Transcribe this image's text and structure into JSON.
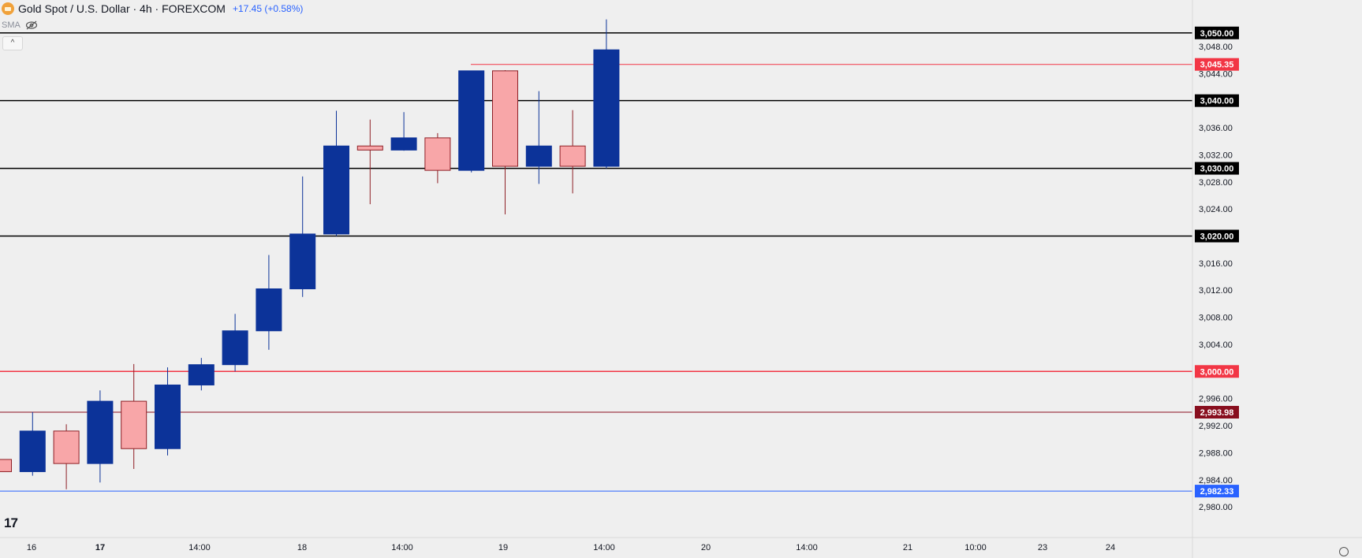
{
  "header": {
    "title": "Gold Spot / U.S. Dollar · 4h · FOREXCOM",
    "change": "+17.45 (+0.58%)",
    "indicator": "SMA",
    "collapse_label": "^",
    "logo": "17"
  },
  "colors": {
    "bull": "#0c3399",
    "bear": "#f8a6a8",
    "bear_border": "#8e1f25",
    "background": "#efefef",
    "red_line": "#f23645",
    "dark_red": "#880e1e",
    "blue_line": "#2962ff",
    "black_line": "#000000"
  },
  "chart_data": {
    "type": "candlestick",
    "interval": "4h",
    "y_axis": {
      "ticks": [
        2980,
        2984,
        2988,
        2992,
        2996,
        3000,
        3004,
        3008,
        3012,
        3016,
        3020,
        3024,
        3028,
        3032,
        3036,
        3040,
        3044,
        3048,
        3050
      ],
      "tick_labels": [
        "2,980.00",
        "2,984.00",
        "2,988.00",
        "2,992.00",
        "2,996.00",
        "3,000.00",
        "3,004.00",
        "3,008.00",
        "3,012.00",
        "3,016.00",
        "3,020.00",
        "3,024.00",
        "3,028.00",
        "3,032.00",
        "3,036.00",
        "3,040.00",
        "3,044.00",
        "3,048.00",
        "3,050.00"
      ],
      "range": [
        2978.5,
        3052.3
      ]
    },
    "x_axis": {
      "labels": [
        "16",
        "17",
        "14:00",
        "18",
        "14:00",
        "19",
        "14:00",
        "20",
        "14:00",
        "21",
        "10:00",
        "23",
        "24"
      ],
      "bold_labels": [
        "17"
      ]
    },
    "candles": [
      {
        "open": 2987.0,
        "high": 2988.8,
        "low": 2985.2,
        "close": 2985.2
      },
      {
        "open": 2985.2,
        "high": 2994.0,
        "low": 2984.6,
        "close": 2991.2
      },
      {
        "open": 2991.2,
        "high": 2992.2,
        "low": 2982.6,
        "close": 2986.4
      },
      {
        "open": 2986.4,
        "high": 2997.2,
        "low": 2983.6,
        "close": 2995.6
      },
      {
        "open": 2995.6,
        "high": 3001.1,
        "low": 2985.6,
        "close": 2988.6
      },
      {
        "open": 2988.6,
        "high": 3000.6,
        "low": 2987.6,
        "close": 2998.0
      },
      {
        "open": 2998.0,
        "high": 3002.0,
        "low": 2997.2,
        "close": 3001.0
      },
      {
        "open": 3001.0,
        "high": 3008.5,
        "low": 3000.0,
        "close": 3006.0
      },
      {
        "open": 3006.0,
        "high": 3017.2,
        "low": 3003.2,
        "close": 3012.2
      },
      {
        "open": 3012.2,
        "high": 3028.8,
        "low": 3011.0,
        "close": 3020.3
      },
      {
        "open": 3020.3,
        "high": 3038.5,
        "low": 3020.0,
        "close": 3033.3
      },
      {
        "open": 3033.3,
        "high": 3037.2,
        "low": 3024.7,
        "close": 3032.7
      },
      {
        "open": 3032.7,
        "high": 3038.3,
        "low": 3032.6,
        "close": 3034.5
      },
      {
        "open": 3034.5,
        "high": 3035.2,
        "low": 3027.8,
        "close": 3029.7
      },
      {
        "open": 3029.7,
        "high": 3044.4,
        "low": 3029.4,
        "close": 3044.4
      },
      {
        "open": 3044.4,
        "high": 3044.5,
        "low": 3023.2,
        "close": 3030.3
      },
      {
        "open": 3030.3,
        "high": 3041.4,
        "low": 3027.7,
        "close": 3033.3
      },
      {
        "open": 3033.3,
        "high": 3038.6,
        "low": 3026.3,
        "close": 3030.3
      },
      {
        "open": 3030.3,
        "high": 3052.0,
        "low": 3030.0,
        "close": 3047.5
      }
    ],
    "horizontal_lines": [
      {
        "price": 3050.0,
        "label": "3,050.00",
        "color": "black"
      },
      {
        "price": 3045.35,
        "label": "3,045.35",
        "color": "red_short"
      },
      {
        "price": 3040.0,
        "label": "3,040.00",
        "color": "black"
      },
      {
        "price": 3030.0,
        "label": "3,030.00",
        "color": "black"
      },
      {
        "price": 3020.0,
        "label": "3,020.00",
        "color": "black"
      },
      {
        "price": 3000.0,
        "label": "3,000.00",
        "color": "red"
      },
      {
        "price": 2993.98,
        "label": "2,993.98",
        "color": "dark_red"
      },
      {
        "price": 2982.33,
        "label": "2,982.33",
        "color": "blue"
      }
    ]
  }
}
